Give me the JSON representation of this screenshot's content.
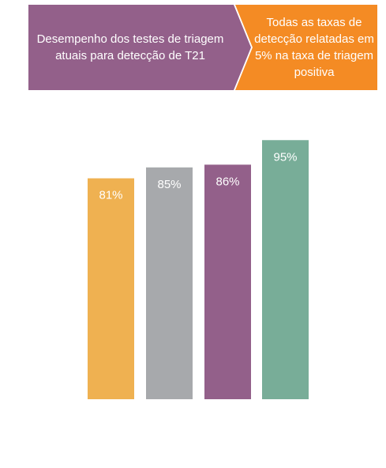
{
  "banner": {
    "left_text": "Desempenho dos testes de triagem atuais para detecção de T21",
    "right_text": "Todas as taxas de detecção relatadas em 5% na taxa de triagem positiva",
    "left_color": "#93608a",
    "right_color": "#f48b24"
  },
  "chart_data": {
    "type": "bar",
    "categories": [
      "",
      "",
      "",
      ""
    ],
    "values": [
      81,
      85,
      86,
      95
    ],
    "labels": [
      "81%",
      "85%",
      "86%",
      "95%"
    ],
    "colors": [
      "#efb151",
      "#a7a9ac",
      "#93608a",
      "#78ad98"
    ],
    "title": "",
    "xlabel": "",
    "ylabel": "",
    "ylim": [
      0,
      100
    ],
    "grid": false,
    "legend": "none"
  }
}
